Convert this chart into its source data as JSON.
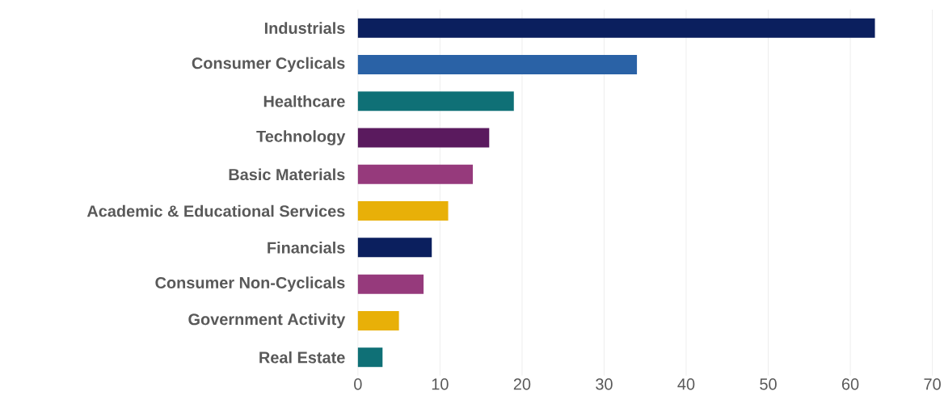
{
  "chart_data": {
    "type": "bar",
    "orientation": "horizontal",
    "categories": [
      "Industrials",
      "Consumer Cyclicals",
      "Healthcare",
      "Technology",
      "Basic Materials",
      "Academic & Educational Services",
      "Financials",
      "Consumer Non-Cyclicals",
      "Government Activity",
      "Real Estate"
    ],
    "values": [
      63,
      34,
      19,
      16,
      14,
      11,
      9,
      8,
      5,
      3
    ],
    "colors": [
      "#0b1f5e",
      "#2a62a6",
      "#0f7076",
      "#5a1a5e",
      "#963a7c",
      "#e8b008",
      "#0b1f5e",
      "#963a7c",
      "#e8b008",
      "#0f7076"
    ],
    "xlim": [
      0,
      70
    ],
    "xticks": [
      0,
      10,
      20,
      30,
      40,
      50,
      60,
      70
    ],
    "grid": "x"
  }
}
